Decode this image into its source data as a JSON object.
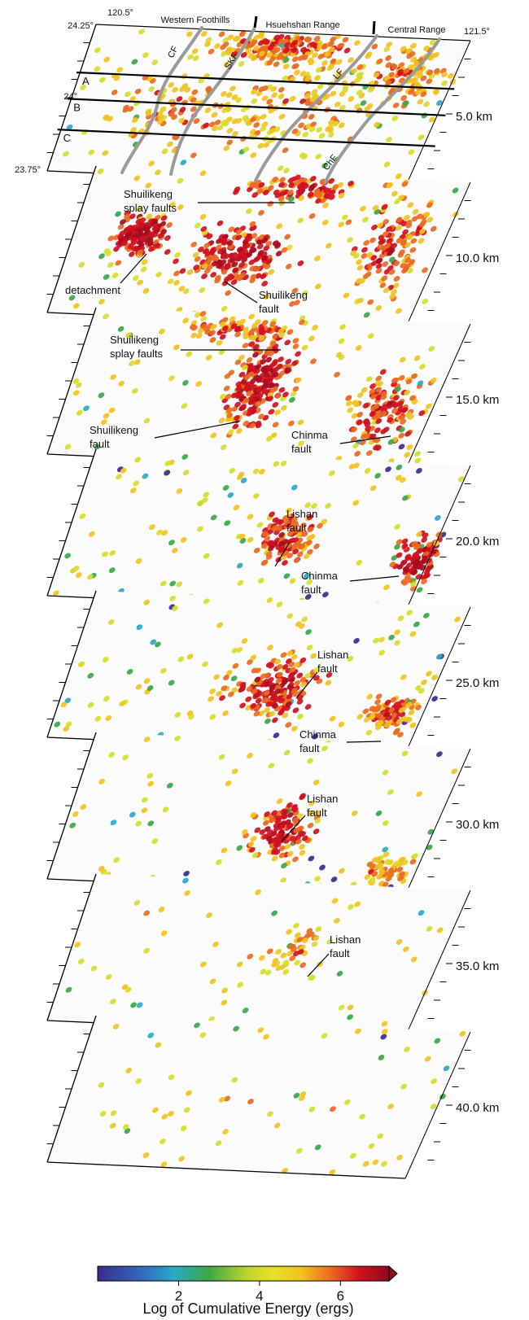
{
  "header": {
    "lon_left": "120.5°",
    "lon_right": "121.5°",
    "lat_top": "24.25°",
    "lat_mid": "24°",
    "lat_bottom": "23.75°",
    "regions": [
      "Western Foothills",
      "Hsuehshan Range",
      "Central Range"
    ],
    "profiles": [
      "A",
      "B",
      "C"
    ],
    "faults": [
      "CF",
      "SKF",
      "LF",
      "ChF"
    ]
  },
  "slices": [
    {
      "depth": "5.0 km",
      "density": 620
    },
    {
      "depth": "10.0 km",
      "density": 640,
      "labels": [
        "Shuilikeng\nsplay faults",
        "detachment",
        "Shuilikeng\nfault"
      ]
    },
    {
      "depth": "15.0 km",
      "density": 520,
      "labels": [
        "Shuilikeng\nsplay faults",
        "Shuilikeng\nfault",
        "Chinma\nfault"
      ]
    },
    {
      "depth": "20.0 km",
      "density": 330,
      "labels": [
        "Lishan\nfault",
        "Chinma\nfault"
      ]
    },
    {
      "depth": "25.0 km",
      "density": 360,
      "labels": [
        "Lishan\nfault",
        "Chinma\nfault"
      ]
    },
    {
      "depth": "30.0 km",
      "density": 250,
      "labels": [
        "Lishan\nfault"
      ]
    },
    {
      "depth": "35.0 km",
      "density": 95,
      "labels": [
        "Lishan\nfault"
      ]
    },
    {
      "depth": "40.0 km",
      "density": 70
    }
  ],
  "colorbar": {
    "title": "Log of Cumulative Energy (ergs)",
    "ticks": [
      "2",
      "4",
      "6"
    ],
    "tick_values": [
      2,
      4,
      6
    ],
    "range": [
      0,
      7.2
    ],
    "colors": [
      "#3b2b8f",
      "#2aa8c8",
      "#3aa845",
      "#d8dc2a",
      "#f2c21e",
      "#ea6a1f",
      "#d01020",
      "#8e0a1e"
    ]
  }
}
